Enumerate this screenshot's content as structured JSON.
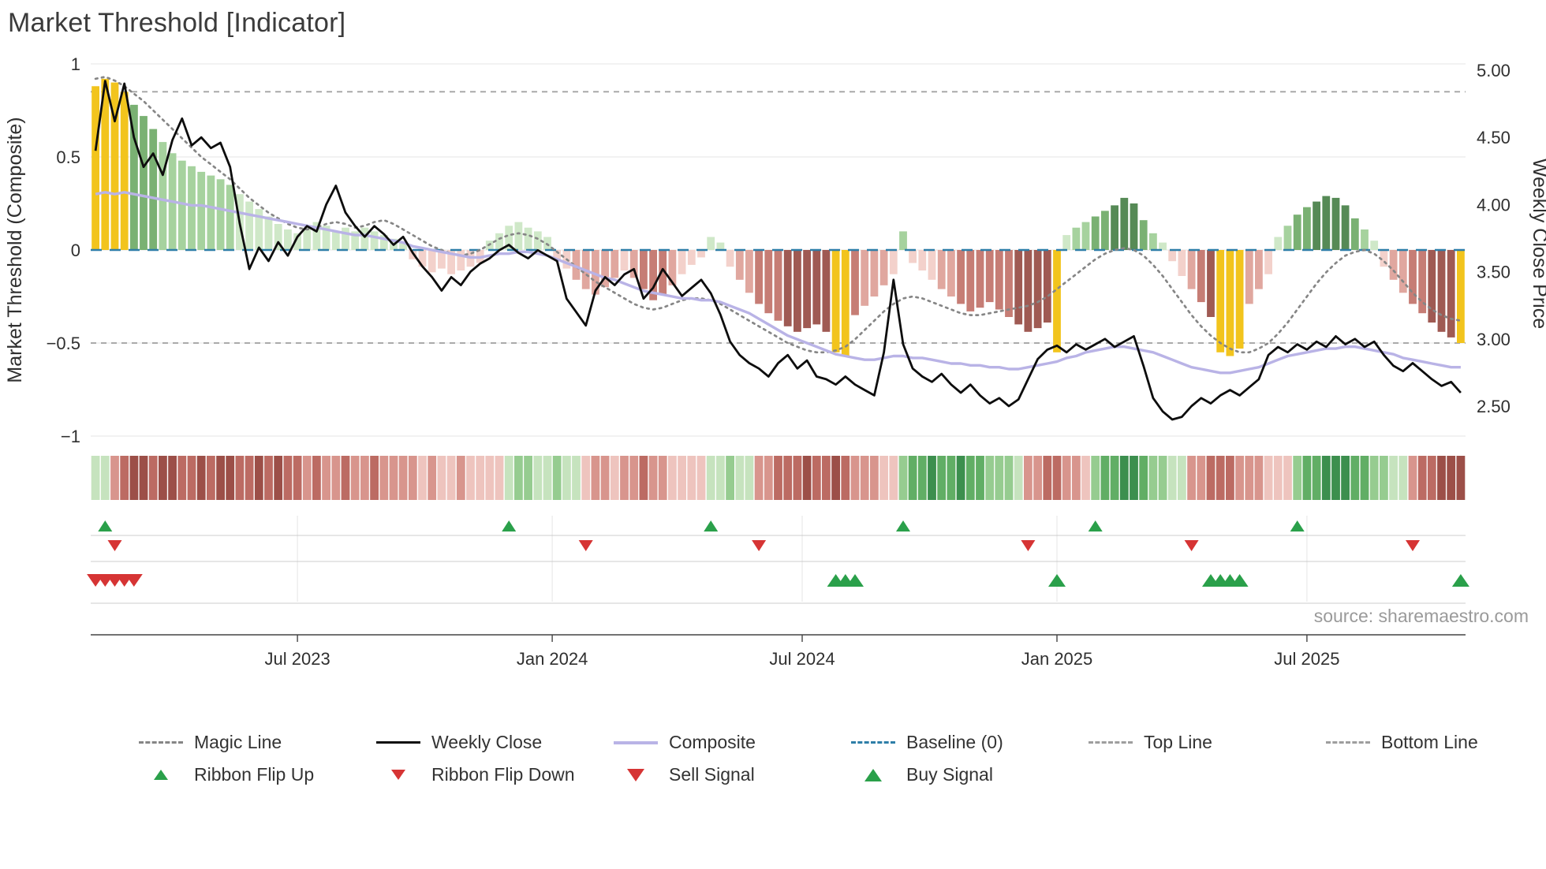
{
  "title": "Market Threshold [Indicator]",
  "source_text": "source: sharemaestro.com",
  "legend": {
    "row1_labels": [
      "Magic Line",
      "Weekly Close",
      "Composite",
      "Baseline (0)",
      "Top Line",
      "Bottom Line"
    ],
    "row2_labels": [
      "Ribbon Flip Up",
      "Ribbon Flip Down",
      "Sell Signal",
      "Buy Signal"
    ]
  },
  "colors": {
    "magic_line": "#868686",
    "weekly_close": "#0d0d0d",
    "composite": "#b9b3e6",
    "baseline": "#2e7ea8",
    "top_bottom_line": "#9e9e9e",
    "buy_green": "#2aa04a",
    "sell_red": "#d63434",
    "grid": "#eaeaea",
    "axis_text": "#2f2f2f",
    "title_text": "#3b3b3b",
    "source_text": "#9a9a9a",
    "bar_palette": {
      "y": "#f2c41d",
      "g1": "#cfe8c8",
      "g2": "#a6d29e",
      "g3": "#7ab173",
      "g4": "#568a56",
      "r1": "#f3d1cb",
      "r2": "#e0a79f",
      "r3": "#c67d75",
      "r4": "#9f5a53"
    },
    "heat_palette": {
      "G1": "#c6e3be",
      "G2": "#96cc90",
      "G3": "#61ae65",
      "G4": "#3c8f4e",
      "R1": "#eec4be",
      "R2": "#d8958d",
      "R3": "#bc6b63",
      "R4": "#9c4f48"
    }
  },
  "chart_data": {
    "type": "combo",
    "description": "Weekly market-threshold composite histogram (left axis -1..1) with weekly close price line (right axis 2.50..5.00), composite and magic overlay lines, momentum heatmap ribbon, ribbon flip markers and buy/sell signal markers.",
    "weeks": 143,
    "axes": {
      "left_label": "Market Threshold (Composite)",
      "right_label": "Weekly Close Price",
      "left_tick_labels": [
        "1",
        "0.5",
        "0",
        "−0.5",
        "−1"
      ],
      "left_tick_values": [
        1,
        0.5,
        0,
        -0.5,
        -1
      ],
      "right_tick_labels": [
        "5.00",
        "4.50",
        "4.00",
        "3.50",
        "3.00",
        "2.50"
      ],
      "right_tick_values": [
        5.0,
        4.5,
        4.0,
        3.5,
        3.0,
        2.5
      ],
      "x_tick_labels": [
        "Jul 2023",
        "Jan 2024",
        "Jul 2024",
        "Jan 2025",
        "Jul 2025"
      ],
      "x_tick_weeks": [
        21,
        47.5,
        73.5,
        100,
        126
      ],
      "left_axis_range": [
        -1,
        1
      ],
      "right_axis_range": [
        2.35,
        5.05
      ]
    },
    "top_line": 0.85,
    "bottom_line": -0.5,
    "baseline": 0,
    "series": [
      {
        "name": "Composite Histogram",
        "type": "bar",
        "axis": "left",
        "values": [
          0.88,
          0.92,
          0.9,
          0.85,
          0.78,
          0.72,
          0.65,
          0.58,
          0.52,
          0.48,
          0.45,
          0.42,
          0.4,
          0.38,
          0.35,
          0.3,
          0.26,
          0.22,
          0.18,
          0.14,
          0.11,
          0.09,
          0.12,
          0.15,
          0.13,
          0.1,
          0.12,
          0.1,
          0.12,
          0.1,
          0.08,
          0.06,
          0.04,
          -0.05,
          -0.09,
          -0.12,
          -0.1,
          -0.13,
          -0.11,
          -0.09,
          -0.07,
          0.05,
          0.09,
          0.13,
          0.15,
          0.12,
          0.1,
          0.07,
          -0.05,
          -0.1,
          -0.16,
          -0.21,
          -0.24,
          -0.2,
          -0.15,
          -0.11,
          -0.15,
          -0.21,
          -0.27,
          -0.24,
          -0.19,
          -0.13,
          -0.08,
          -0.04,
          0.07,
          0.04,
          -0.09,
          -0.16,
          -0.23,
          -0.29,
          -0.34,
          -0.38,
          -0.41,
          -0.44,
          -0.42,
          -0.4,
          -0.44,
          -0.55,
          -0.57,
          -0.35,
          -0.3,
          -0.25,
          -0.19,
          -0.13,
          0.1,
          -0.07,
          -0.11,
          -0.16,
          -0.21,
          -0.25,
          -0.29,
          -0.33,
          -0.31,
          -0.28,
          -0.32,
          -0.36,
          -0.4,
          -0.44,
          -0.42,
          -0.39,
          -0.55,
          0.08,
          0.12,
          0.15,
          0.18,
          0.21,
          0.24,
          0.28,
          0.25,
          0.16,
          0.09,
          0.04,
          -0.06,
          -0.14,
          -0.21,
          -0.28,
          -0.36,
          -0.55,
          -0.57,
          -0.53,
          -0.29,
          -0.21,
          -0.13,
          0.07,
          0.13,
          0.19,
          0.23,
          0.26,
          0.29,
          0.28,
          0.24,
          0.17,
          0.11,
          0.05,
          -0.09,
          -0.16,
          -0.23,
          -0.29,
          -0.34,
          -0.39,
          -0.44,
          -0.47,
          -0.5
        ],
        "color_keys": [
          "y",
          "y",
          "y",
          "y",
          "g3",
          "g3",
          "g3",
          "g2",
          "g2",
          "g2",
          "g2",
          "g2",
          "g2",
          "g2",
          "g2",
          "g1",
          "g1",
          "g1",
          "g1",
          "g1",
          "g1",
          "g1",
          "g1",
          "g1",
          "g1",
          "g1",
          "g1",
          "g1",
          "g1",
          "g1",
          "g1",
          "g1",
          "g1",
          "r1",
          "r1",
          "r1",
          "r1",
          "r1",
          "r1",
          "r1",
          "r1",
          "g1",
          "g1",
          "g1",
          "g1",
          "g1",
          "g1",
          "g1",
          "r1",
          "r1",
          "r2",
          "r2",
          "r2",
          "r2",
          "r2",
          "r1",
          "r2",
          "r3",
          "r3",
          "r3",
          "r2",
          "r1",
          "r1",
          "r1",
          "g1",
          "g1",
          "r1",
          "r2",
          "r2",
          "r3",
          "r3",
          "r3",
          "r4",
          "r4",
          "r4",
          "r4",
          "r4",
          "y",
          "y",
          "r3",
          "r2",
          "r2",
          "r2",
          "r1",
          "g2",
          "r1",
          "r1",
          "r1",
          "r2",
          "r2",
          "r3",
          "r3",
          "r3",
          "r3",
          "r3",
          "r3",
          "r4",
          "r4",
          "r4",
          "r4",
          "y",
          "g1",
          "g2",
          "g2",
          "g3",
          "g3",
          "g4",
          "g4",
          "g4",
          "g3",
          "g2",
          "g1",
          "r1",
          "r1",
          "r2",
          "r3",
          "r4",
          "y",
          "y",
          "y",
          "r2",
          "r2",
          "r1",
          "g1",
          "g2",
          "g3",
          "g3",
          "g4",
          "g4",
          "g4",
          "g4",
          "g3",
          "g2",
          "g1",
          "r1",
          "r2",
          "r2",
          "r3",
          "r3",
          "r4",
          "r4",
          "r4",
          "y"
        ]
      },
      {
        "name": "Weekly Close",
        "type": "line",
        "axis": "right",
        "values": [
          4.4,
          4.92,
          4.62,
          4.9,
          4.5,
          4.28,
          4.38,
          4.22,
          4.48,
          4.64,
          4.44,
          4.5,
          4.42,
          4.46,
          4.28,
          3.86,
          3.52,
          3.68,
          3.58,
          3.72,
          3.62,
          3.76,
          3.84,
          3.8,
          4.0,
          4.14,
          3.94,
          3.84,
          3.76,
          3.84,
          3.78,
          3.7,
          3.76,
          3.64,
          3.54,
          3.46,
          3.36,
          3.46,
          3.4,
          3.5,
          3.56,
          3.6,
          3.66,
          3.7,
          3.64,
          3.6,
          3.66,
          3.62,
          3.58,
          3.3,
          3.2,
          3.1,
          3.36,
          3.46,
          3.4,
          3.48,
          3.52,
          3.3,
          3.38,
          3.52,
          3.42,
          3.32,
          3.38,
          3.44,
          3.34,
          3.18,
          2.98,
          2.88,
          2.82,
          2.78,
          2.72,
          2.82,
          2.88,
          2.78,
          2.84,
          2.72,
          2.7,
          2.66,
          2.72,
          2.66,
          2.62,
          2.58,
          2.9,
          3.44,
          2.96,
          2.78,
          2.72,
          2.68,
          2.74,
          2.66,
          2.6,
          2.66,
          2.58,
          2.52,
          2.56,
          2.5,
          2.55,
          2.7,
          2.85,
          2.92,
          2.95,
          2.9,
          2.96,
          2.92,
          2.96,
          3.0,
          2.94,
          2.98,
          3.02,
          2.8,
          2.56,
          2.46,
          2.4,
          2.42,
          2.5,
          2.56,
          2.52,
          2.58,
          2.62,
          2.58,
          2.64,
          2.7,
          2.88,
          2.94,
          2.9,
          2.96,
          2.92,
          2.98,
          2.94,
          3.02,
          2.96,
          3.0,
          2.94,
          2.98,
          2.88,
          2.8,
          2.76,
          2.82,
          2.76,
          2.7,
          2.65,
          2.68,
          2.6
        ]
      },
      {
        "name": "Composite",
        "type": "line",
        "axis": "left",
        "values": [
          0.3,
          0.31,
          0.3,
          0.31,
          0.3,
          0.29,
          0.28,
          0.27,
          0.26,
          0.25,
          0.24,
          0.24,
          0.23,
          0.22,
          0.21,
          0.2,
          0.19,
          0.18,
          0.17,
          0.16,
          0.15,
          0.14,
          0.13,
          0.12,
          0.11,
          0.1,
          0.09,
          0.08,
          0.08,
          0.07,
          0.06,
          0.05,
          0.04,
          0.02,
          0.01,
          0.0,
          -0.01,
          -0.02,
          -0.03,
          -0.04,
          -0.04,
          -0.03,
          -0.02,
          -0.02,
          -0.01,
          -0.01,
          -0.02,
          -0.03,
          -0.05,
          -0.07,
          -0.09,
          -0.11,
          -0.13,
          -0.15,
          -0.16,
          -0.18,
          -0.2,
          -0.22,
          -0.23,
          -0.24,
          -0.25,
          -0.26,
          -0.26,
          -0.27,
          -0.27,
          -0.28,
          -0.3,
          -0.32,
          -0.34,
          -0.37,
          -0.4,
          -0.43,
          -0.46,
          -0.48,
          -0.5,
          -0.52,
          -0.54,
          -0.56,
          -0.57,
          -0.58,
          -0.59,
          -0.59,
          -0.58,
          -0.57,
          -0.57,
          -0.58,
          -0.58,
          -0.59,
          -0.6,
          -0.61,
          -0.61,
          -0.62,
          -0.62,
          -0.63,
          -0.63,
          -0.64,
          -0.64,
          -0.63,
          -0.62,
          -0.61,
          -0.6,
          -0.58,
          -0.57,
          -0.55,
          -0.54,
          -0.53,
          -0.52,
          -0.52,
          -0.53,
          -0.54,
          -0.55,
          -0.57,
          -0.59,
          -0.61,
          -0.63,
          -0.64,
          -0.65,
          -0.66,
          -0.66,
          -0.65,
          -0.64,
          -0.63,
          -0.61,
          -0.59,
          -0.57,
          -0.56,
          -0.55,
          -0.54,
          -0.53,
          -0.53,
          -0.52,
          -0.52,
          -0.53,
          -0.54,
          -0.55,
          -0.56,
          -0.58,
          -0.59,
          -0.6,
          -0.61,
          -0.62,
          -0.63,
          -0.63
        ]
      },
      {
        "name": "Magic Line",
        "type": "line",
        "axis": "left",
        "values": [
          0.92,
          0.93,
          0.91,
          0.88,
          0.84,
          0.8,
          0.75,
          0.7,
          0.65,
          0.6,
          0.55,
          0.5,
          0.46,
          0.42,
          0.38,
          0.33,
          0.28,
          0.24,
          0.2,
          0.17,
          0.14,
          0.12,
          0.11,
          0.12,
          0.14,
          0.15,
          0.14,
          0.12,
          0.13,
          0.15,
          0.16,
          0.14,
          0.11,
          0.08,
          0.05,
          0.02,
          0.0,
          -0.02,
          -0.03,
          -0.02,
          0.0,
          0.03,
          0.06,
          0.08,
          0.09,
          0.08,
          0.06,
          0.03,
          -0.01,
          -0.05,
          -0.09,
          -0.13,
          -0.17,
          -0.2,
          -0.23,
          -0.26,
          -0.29,
          -0.31,
          -0.32,
          -0.31,
          -0.29,
          -0.27,
          -0.26,
          -0.26,
          -0.27,
          -0.29,
          -0.32,
          -0.35,
          -0.38,
          -0.41,
          -0.44,
          -0.47,
          -0.5,
          -0.52,
          -0.54,
          -0.55,
          -0.55,
          -0.54,
          -0.52,
          -0.48,
          -0.43,
          -0.38,
          -0.33,
          -0.29,
          -0.26,
          -0.25,
          -0.26,
          -0.28,
          -0.3,
          -0.32,
          -0.34,
          -0.35,
          -0.35,
          -0.34,
          -0.33,
          -0.32,
          -0.31,
          -0.3,
          -0.28,
          -0.25,
          -0.21,
          -0.17,
          -0.13,
          -0.09,
          -0.05,
          -0.02,
          0.0,
          0.01,
          0.0,
          -0.03,
          -0.08,
          -0.14,
          -0.21,
          -0.28,
          -0.35,
          -0.41,
          -0.46,
          -0.5,
          -0.53,
          -0.55,
          -0.55,
          -0.53,
          -0.5,
          -0.45,
          -0.39,
          -0.32,
          -0.25,
          -0.18,
          -0.12,
          -0.07,
          -0.03,
          -0.01,
          0.0,
          -0.02,
          -0.06,
          -0.11,
          -0.17,
          -0.23,
          -0.28,
          -0.32,
          -0.35,
          -0.37,
          -0.38
        ]
      }
    ],
    "heatmap_ribbon": {
      "description": "Weekly momentum ribbon, red-to-green shading",
      "color_keys": [
        "G1",
        "G1",
        "R2",
        "R3",
        "R4",
        "R4",
        "R3",
        "R4",
        "R4",
        "R3",
        "R3",
        "R4",
        "R3",
        "R4",
        "R4",
        "R3",
        "R3",
        "R4",
        "R3",
        "R4",
        "R3",
        "R3",
        "R2",
        "R3",
        "R2",
        "R2",
        "R3",
        "R2",
        "R2",
        "R3",
        "R2",
        "R2",
        "R2",
        "R2",
        "R1",
        "R2",
        "R1",
        "R1",
        "R2",
        "R1",
        "R1",
        "R1",
        "R1",
        "G1",
        "G2",
        "G2",
        "G1",
        "G1",
        "G2",
        "G1",
        "G1",
        "R1",
        "R2",
        "R2",
        "R1",
        "R2",
        "R2",
        "R3",
        "R2",
        "R2",
        "R1",
        "R1",
        "R1",
        "R1",
        "G1",
        "G1",
        "G2",
        "G1",
        "G1",
        "R2",
        "R2",
        "R3",
        "R3",
        "R3",
        "R4",
        "R3",
        "R3",
        "R4",
        "R3",
        "R2",
        "R2",
        "R2",
        "R1",
        "R1",
        "G2",
        "G3",
        "G3",
        "G4",
        "G3",
        "G3",
        "G4",
        "G3",
        "G3",
        "G2",
        "G2",
        "G2",
        "G1",
        "R2",
        "R2",
        "R3",
        "R3",
        "R2",
        "R2",
        "R1",
        "G2",
        "G3",
        "G3",
        "G4",
        "G4",
        "G3",
        "G2",
        "G2",
        "G1",
        "G1",
        "R2",
        "R2",
        "R3",
        "R3",
        "R3",
        "R2",
        "R2",
        "R2",
        "R1",
        "R1",
        "R1",
        "G2",
        "G3",
        "G3",
        "G4",
        "G4",
        "G4",
        "G3",
        "G3",
        "G2",
        "G2",
        "G1",
        "G1",
        "R2",
        "R3",
        "R3",
        "R4",
        "R4",
        "R4"
      ]
    },
    "signals": {
      "ribbon_flip_up_weeks": [
        1,
        43,
        64,
        84,
        104,
        125
      ],
      "ribbon_flip_down_weeks": [
        2,
        51,
        69,
        97,
        114,
        137
      ],
      "sell_signal_weeks": [
        0,
        1,
        2,
        3,
        4
      ],
      "buy_signal_weeks": [
        77,
        78,
        79,
        100,
        116,
        117,
        118,
        119,
        142
      ]
    }
  }
}
